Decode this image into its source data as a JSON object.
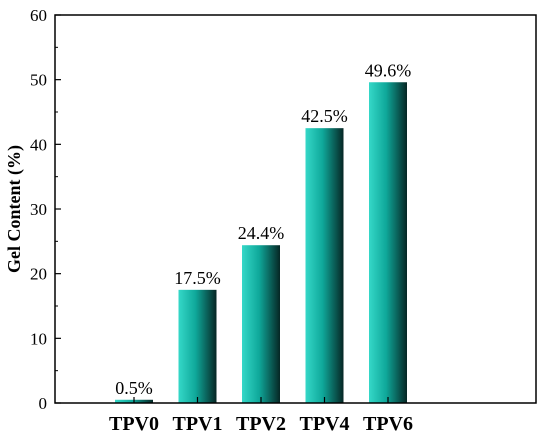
{
  "chart_data": {
    "type": "bar",
    "categories": [
      "TPV0",
      "TPV1",
      "TPV2",
      "TPV4",
      "TPV6"
    ],
    "values": [
      0.5,
      17.5,
      24.4,
      42.5,
      49.6
    ],
    "data_labels": [
      "0.5%",
      "17.5%",
      "24.4%",
      "42.5%",
      "49.6%"
    ],
    "title": "",
    "xlabel": "",
    "ylabel": "Gel Content (%)",
    "ylim": [
      0,
      60
    ],
    "yticks": [
      "0",
      "10",
      "20",
      "30",
      "40",
      "50",
      "60"
    ],
    "grid": false,
    "legend": "none",
    "colors": {
      "bar_light": "#35d8c8",
      "bar_mid": "#0fa89a",
      "bar_dark": "#062624",
      "axis": "#000000"
    }
  }
}
